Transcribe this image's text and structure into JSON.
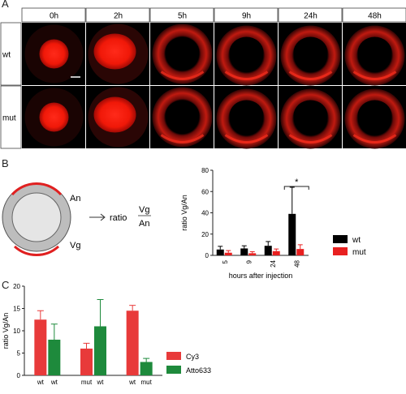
{
  "panels": {
    "a": "A",
    "b": "B",
    "c": "C"
  },
  "panel_a": {
    "time_labels": [
      "0h",
      "2h",
      "5h",
      "9h",
      "24h",
      "48h"
    ],
    "row_labels": [
      "wt",
      "mut"
    ]
  },
  "schematic": {
    "label_an": "An",
    "label_vg": "Vg",
    "arrow_text": "ratio",
    "frac_num": "Vg",
    "frac_den": "An"
  },
  "chart_data": [
    {
      "type": "bar",
      "panel": "B",
      "categories": [
        "5",
        "9",
        "24",
        "48"
      ],
      "series": [
        {
          "name": "wt",
          "color": "#000000",
          "values": [
            5.5,
            6.5,
            9,
            39
          ],
          "errors": [
            3,
            2.5,
            4,
            25
          ]
        },
        {
          "name": "mut",
          "color": "#e82020",
          "values": [
            2.5,
            2,
            4,
            6
          ],
          "errors": [
            2,
            1.5,
            2,
            4
          ]
        }
      ],
      "xlabel": "hours after injection",
      "ylabel": "ratio Vg/An",
      "ylim": [
        0,
        80
      ],
      "yticks": [
        0,
        20,
        40,
        60,
        80
      ],
      "significance": "*",
      "legend_position": "right"
    },
    {
      "type": "bar",
      "panel": "C",
      "groups": [
        {
          "labels": [
            "wt",
            "wt"
          ],
          "values": [
            12.5,
            8
          ],
          "errors": [
            2,
            3.5
          ]
        },
        {
          "labels": [
            "mut",
            "wt"
          ],
          "values": [
            6,
            11
          ],
          "errors": [
            1.2,
            6
          ]
        },
        {
          "labels": [
            "wt",
            "mut"
          ],
          "values": [
            14.5,
            3
          ],
          "errors": [
            1.2,
            0.8
          ]
        }
      ],
      "series": [
        {
          "name": "Cy3",
          "color": "#e83a3a"
        },
        {
          "name": "Atto633",
          "color": "#1e8a3c"
        }
      ],
      "ylabel": "ratio Vg/An",
      "ylim": [
        0,
        20
      ],
      "yticks": [
        0,
        5,
        10,
        15,
        20
      ],
      "legend_position": "right"
    }
  ]
}
